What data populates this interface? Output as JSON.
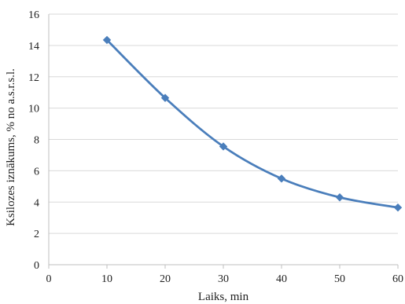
{
  "chart_data": {
    "type": "line",
    "title": "",
    "xlabel": "Laiks, min",
    "ylabel": "Ksilozes  iznākums,   % no a.s.r.s.l.",
    "x": [
      10,
      20,
      30,
      40,
      50,
      60
    ],
    "series": [
      {
        "values": [
          14.35,
          10.65,
          7.55,
          5.5,
          4.3,
          3.65
        ],
        "color": "#4a7ebb",
        "marker": "diamond"
      }
    ],
    "xlim": [
      0,
      60
    ],
    "ylim": [
      0,
      16
    ],
    "xticks": [
      0,
      10,
      20,
      30,
      40,
      50,
      60
    ],
    "yticks": [
      0,
      2,
      4,
      6,
      8,
      10,
      12,
      14,
      16
    ],
    "xtick_labels": [
      "0",
      "10",
      "20",
      "30",
      "40",
      "50",
      "60"
    ],
    "ytick_labels": [
      "0",
      "2",
      "4",
      "6",
      "8",
      "10",
      "12",
      "14",
      "16"
    ],
    "grid": "horizontal",
    "legend": "none",
    "colors": {
      "grid": "#d9d9d9",
      "axis": "#bfbfbf",
      "text": "#222222"
    }
  }
}
